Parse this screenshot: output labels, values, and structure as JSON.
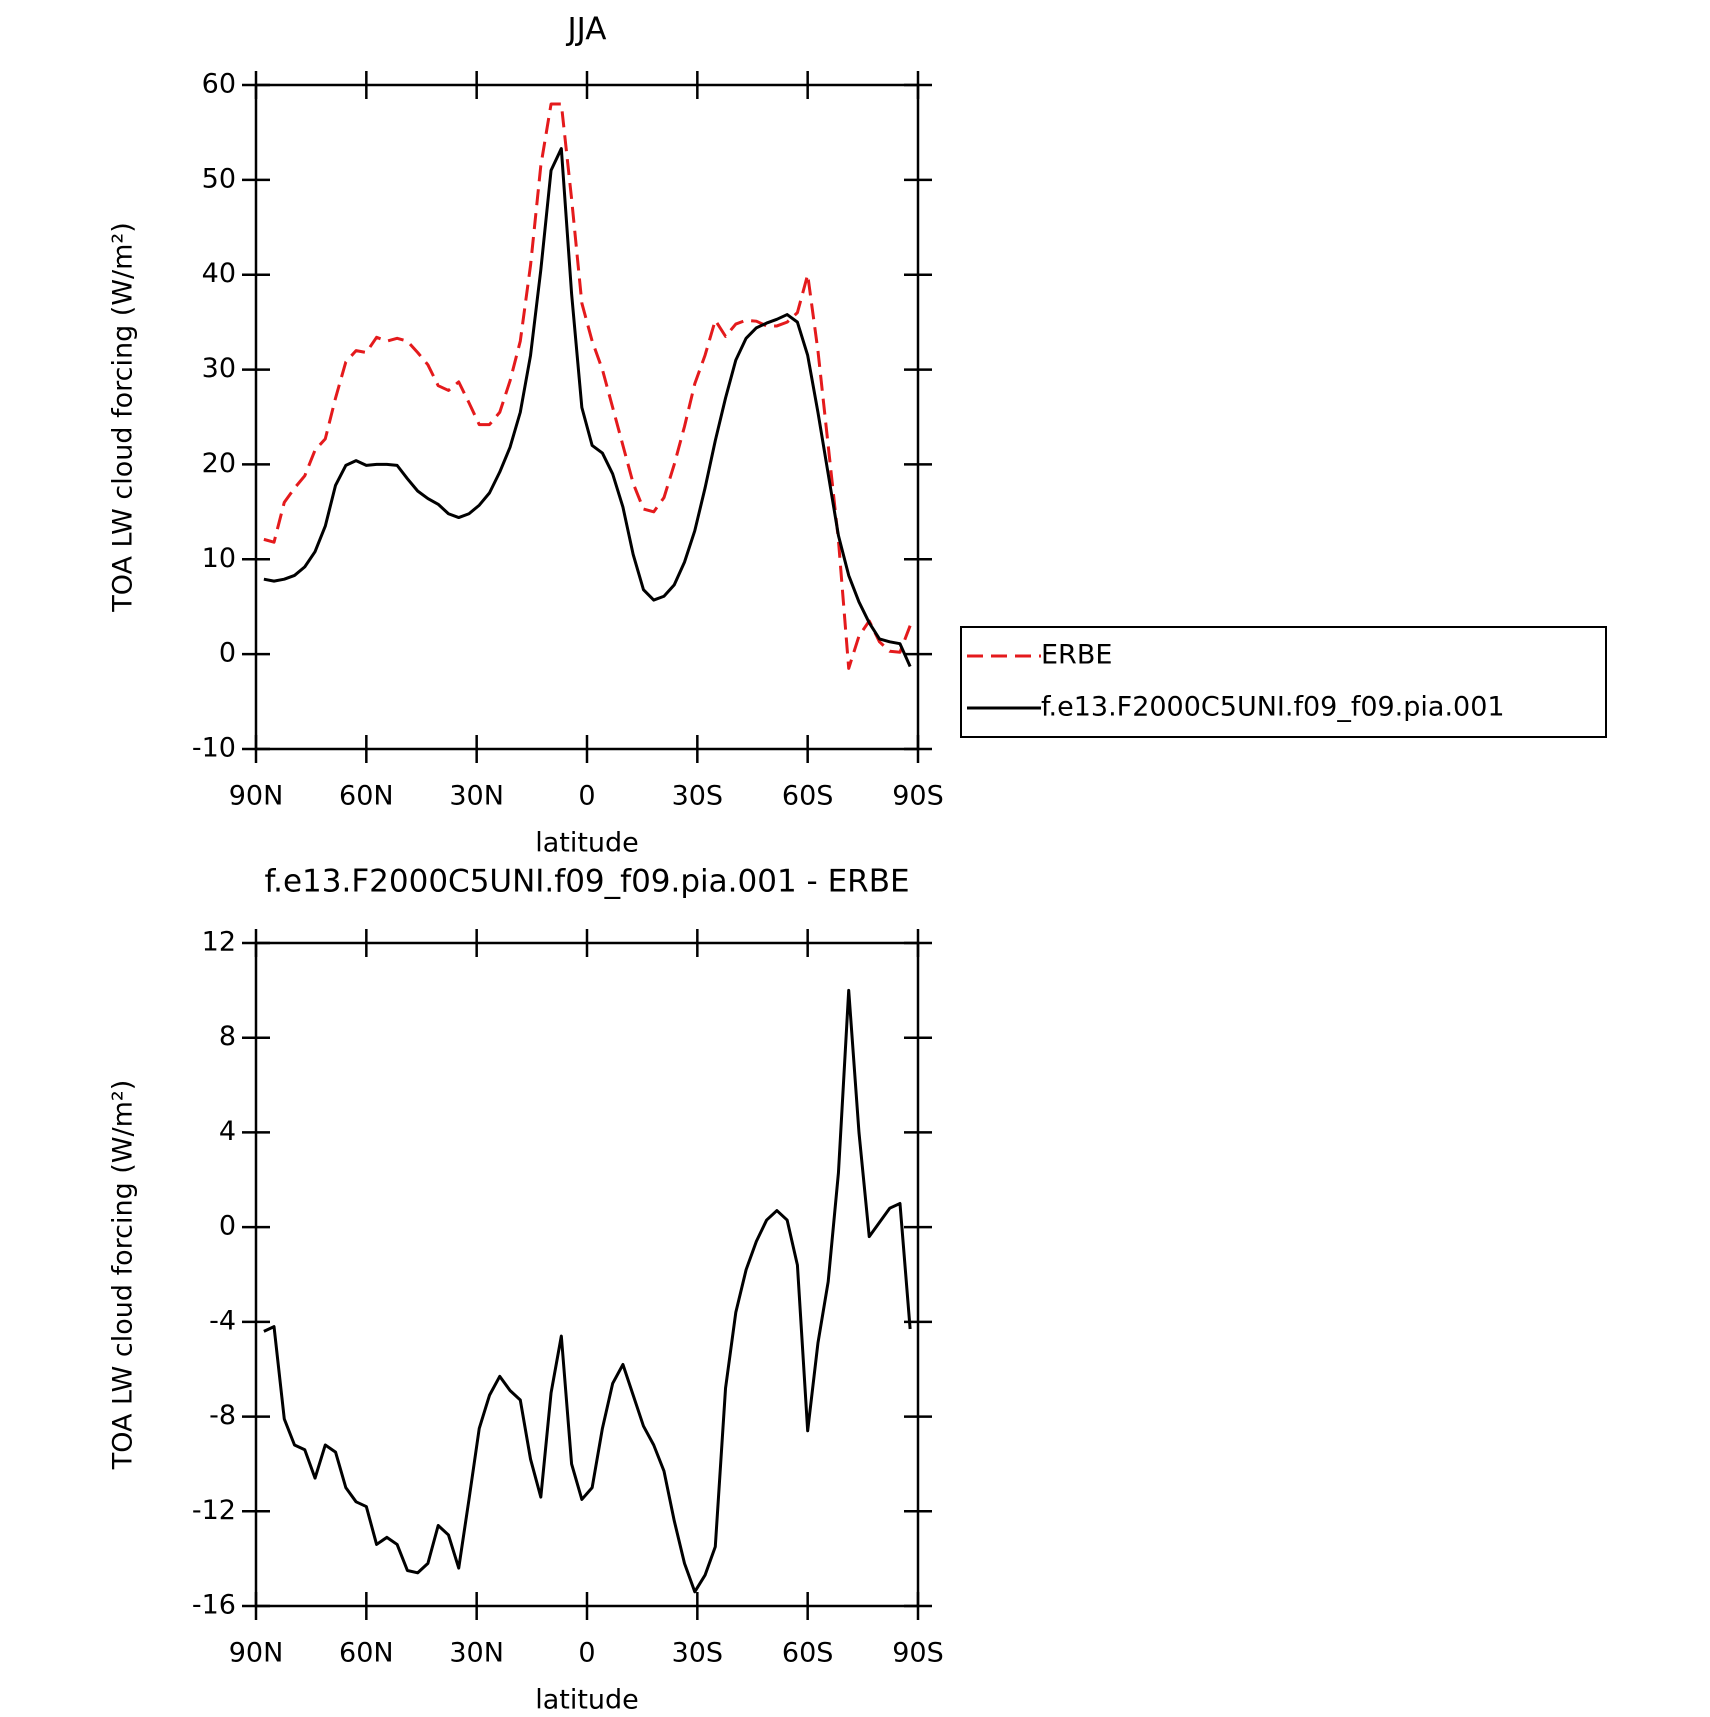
{
  "chart_data": [
    {
      "type": "line",
      "title": "JJA",
      "xlabel": "latitude",
      "ylabel": "TOA LW cloud forcing (W/m²)",
      "x": [
        87.86,
        85.1,
        82.31,
        79.53,
        76.74,
        73.95,
        71.16,
        68.37,
        65.58,
        62.79,
        60,
        57.21,
        54.42,
        51.63,
        48.84,
        46.05,
        43.26,
        40.46,
        37.67,
        34.88,
        32.09,
        29.3,
        26.51,
        23.72,
        20.93,
        18.14,
        15.35,
        12.56,
        9.77,
        6.98,
        4.19,
        1.4,
        -1.4,
        -4.19,
        -6.98,
        -9.77,
        -12.56,
        -15.35,
        -18.14,
        -20.93,
        -23.72,
        -26.51,
        -29.3,
        -32.09,
        -34.88,
        -37.67,
        -40.46,
        -43.26,
        -46.05,
        -48.84,
        -51.63,
        -54.42,
        -57.21,
        -60,
        -62.79,
        -65.58,
        -68.37,
        -71.16,
        -73.95,
        -76.74,
        -79.53,
        -82.31,
        -85.1,
        -87.86
      ],
      "series": [
        {
          "name": "ERBE",
          "color": "#e41a1c",
          "line_style": "dashed",
          "values": [
            12.1,
            11.8,
            16.0,
            17.5,
            18.8,
            21.5,
            22.7,
            27.0,
            30.8,
            32.0,
            31.8,
            33.4,
            33.0,
            33.3,
            33.0,
            31.8,
            30.5,
            28.3,
            27.8,
            28.7,
            26.5,
            24.2,
            24.2,
            25.5,
            28.8,
            33.0,
            41.0,
            51.5,
            58.0,
            58.0,
            48.0,
            37.0,
            33.0,
            30.0,
            26.0,
            22.0,
            18.0,
            15.3,
            15.0,
            16.5,
            20.0,
            24.0,
            28.5,
            31.5,
            35.2,
            33.5,
            34.8,
            35.2,
            35.1,
            34.6,
            34.6,
            35.0,
            36.0,
            40.0,
            32.0,
            22.0,
            12.0,
            -1.5,
            1.9,
            3.5,
            1.3,
            0.3,
            0.2,
            3.0
          ]
        },
        {
          "name": "f.e13.F2000C5UNI.f09_f09.pia.001",
          "color": "#000000",
          "line_style": "solid",
          "values": [
            7.9,
            7.7,
            7.9,
            8.3,
            9.2,
            10.8,
            13.5,
            17.8,
            19.9,
            20.4,
            19.9,
            20.0,
            20.0,
            19.9,
            18.5,
            17.2,
            16.4,
            15.8,
            14.8,
            14.4,
            14.8,
            15.7,
            17.0,
            19.2,
            21.8,
            25.5,
            31.5,
            40.5,
            51.0,
            53.3,
            38.0,
            26.0,
            22.0,
            21.2,
            19.0,
            15.5,
            10.5,
            6.8,
            5.7,
            6.1,
            7.3,
            9.7,
            13.0,
            17.5,
            22.5,
            27.0,
            31.0,
            33.3,
            34.4,
            34.9,
            35.3,
            35.8,
            35.0,
            31.5,
            25.5,
            19.0,
            12.5,
            8.3,
            5.5,
            3.3,
            1.6,
            1.3,
            1.1,
            -1.3
          ]
        }
      ],
      "xlim": [
        90,
        -90
      ],
      "xticks": [
        {
          "value": 90,
          "label": "90N"
        },
        {
          "value": 60,
          "label": "60N"
        },
        {
          "value": 30,
          "label": "30N"
        },
        0,
        {
          "value": -30,
          "label": "30S"
        },
        {
          "value": -60,
          "label": "60S"
        },
        {
          "value": -90,
          "label": "90S"
        }
      ],
      "ylim": [
        -10,
        60
      ],
      "yticks": [
        -10,
        0,
        10,
        20,
        30,
        40,
        50,
        60
      ],
      "legend": "right"
    },
    {
      "type": "line",
      "title": "f.e13.F2000C5UNI.f09_f09.pia.001 - ERBE",
      "xlabel": "latitude",
      "ylabel": "TOA LW cloud forcing (W/m²)",
      "x": [
        87.86,
        85.1,
        82.31,
        79.53,
        76.74,
        73.95,
        71.16,
        68.37,
        65.58,
        62.79,
        60,
        57.21,
        54.42,
        51.63,
        48.84,
        46.05,
        43.26,
        40.46,
        37.67,
        34.88,
        32.09,
        29.3,
        26.51,
        23.72,
        20.93,
        18.14,
        15.35,
        12.56,
        9.77,
        6.98,
        4.19,
        1.4,
        -1.4,
        -4.19,
        -6.98,
        -9.77,
        -12.56,
        -15.35,
        -18.14,
        -20.93,
        -23.72,
        -26.51,
        -29.3,
        -32.09,
        -34.88,
        -37.67,
        -40.46,
        -43.26,
        -46.05,
        -48.84,
        -51.63,
        -54.42,
        -57.21,
        -60,
        -62.79,
        -65.58,
        -68.37,
        -71.16,
        -73.95,
        -76.74,
        -79.53,
        -82.31,
        -85.1,
        -87.86
      ],
      "series": [
        {
          "color": "#000000",
          "line_style": "solid",
          "values": [
            -4.4,
            -4.2,
            -8.1,
            -9.2,
            -9.4,
            -10.6,
            -9.2,
            -9.5,
            -11.0,
            -11.6,
            -11.8,
            -13.4,
            -13.1,
            -13.4,
            -14.5,
            -14.6,
            -14.2,
            -12.6,
            -13.0,
            -14.4,
            -11.5,
            -8.5,
            -7.1,
            -6.3,
            -6.9,
            -7.3,
            -9.8,
            -11.4,
            -7.0,
            -4.6,
            -10.0,
            -11.5,
            -11.0,
            -8.5,
            -6.6,
            -5.8,
            -7.1,
            -8.4,
            -9.2,
            -10.3,
            -12.4,
            -14.2,
            -15.4,
            -14.7,
            -13.5,
            -6.8,
            -3.6,
            -1.8,
            -0.6,
            0.3,
            0.7,
            0.3,
            -1.6,
            -8.6,
            -4.9,
            -2.3,
            2.3,
            10.0,
            4.0,
            -0.4,
            0.2,
            0.8,
            1.0,
            -4.3
          ]
        }
      ],
      "xlim": [
        90,
        -90
      ],
      "xticks": [
        {
          "value": 90,
          "label": "90N"
        },
        {
          "value": 60,
          "label": "60N"
        },
        {
          "value": 30,
          "label": "30N"
        },
        0,
        {
          "value": -30,
          "label": "30S"
        },
        {
          "value": -60,
          "label": "60S"
        },
        {
          "value": -90,
          "label": "90S"
        }
      ],
      "ylim": [
        -16,
        12
      ],
      "yticks": [
        -16,
        -12,
        -8,
        -4,
        0,
        4,
        8,
        12
      ]
    }
  ]
}
